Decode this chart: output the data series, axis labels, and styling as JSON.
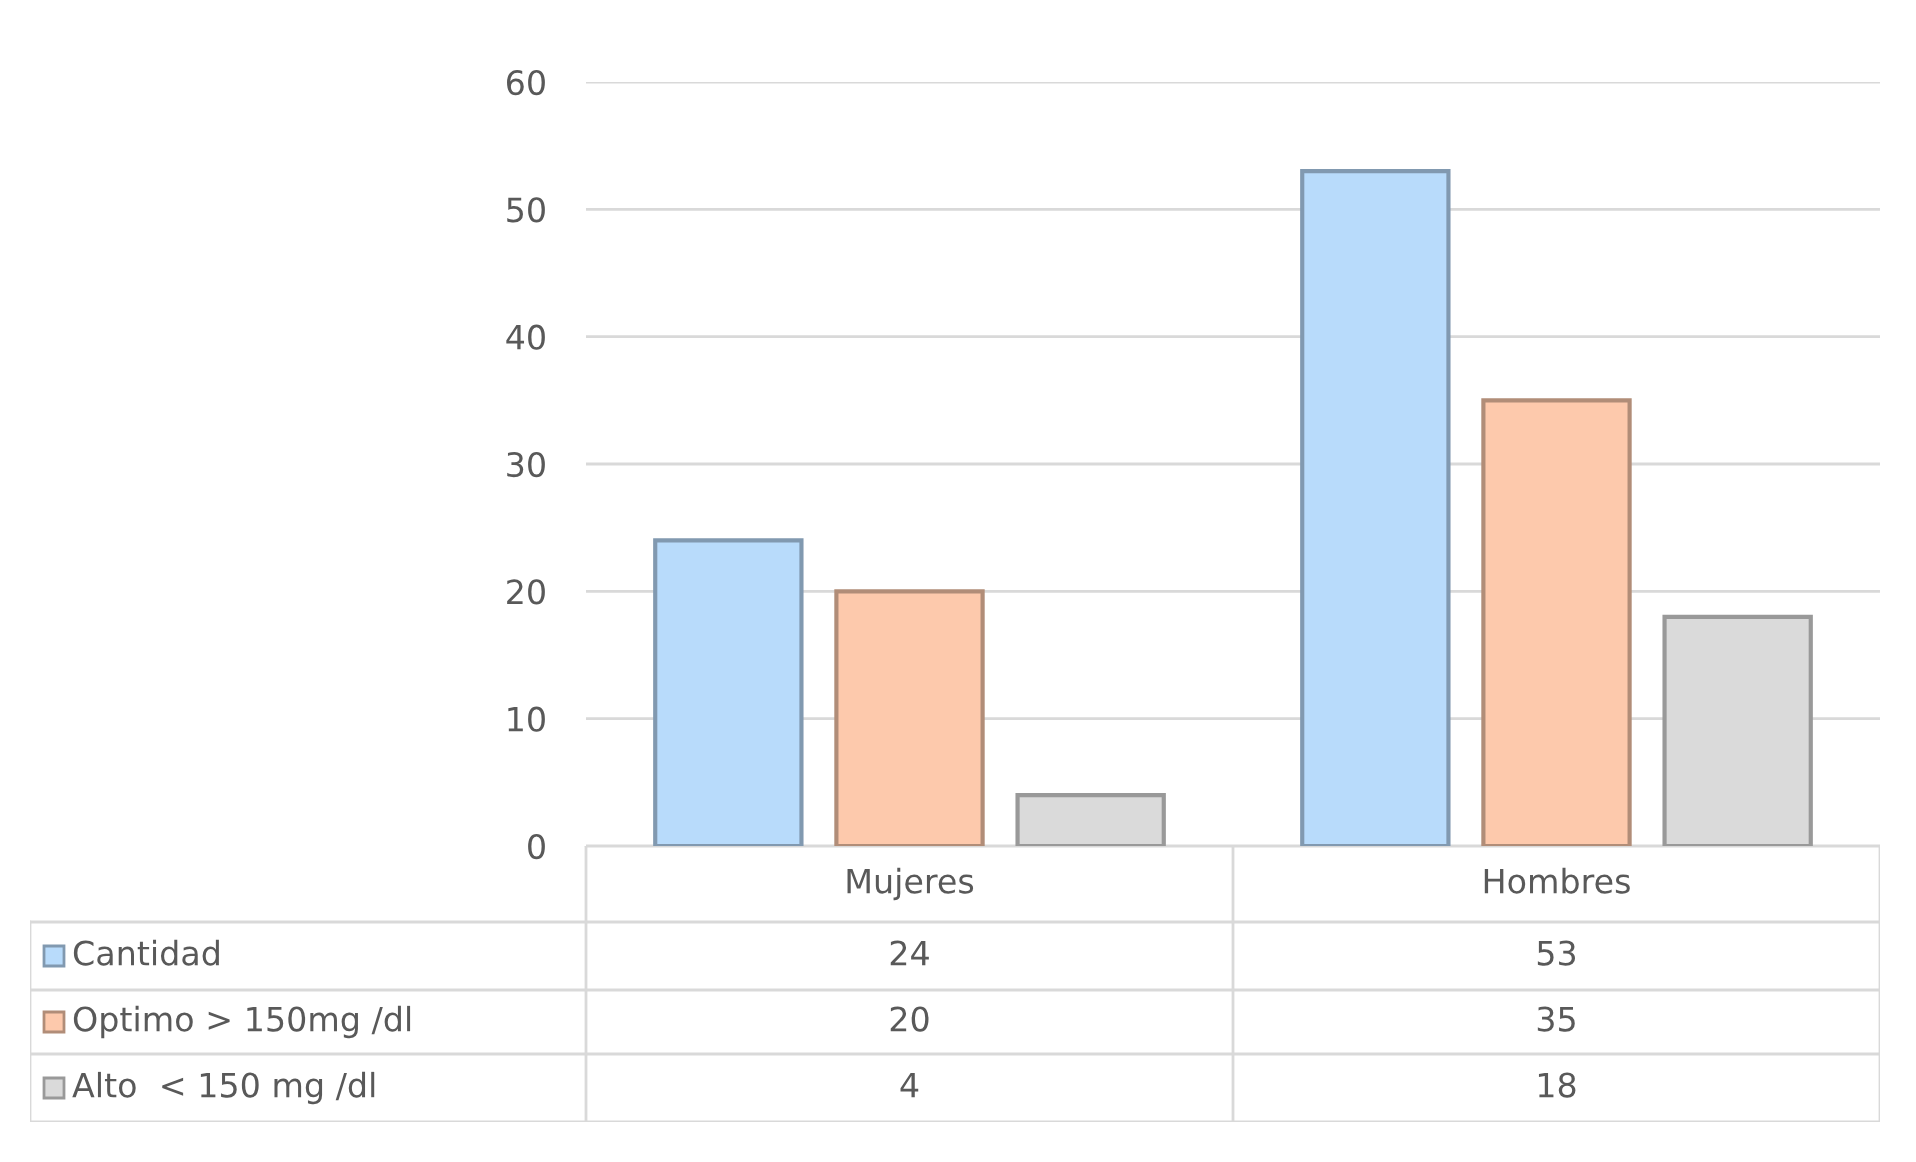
{
  "chart_data": {
    "type": "bar",
    "categories": [
      "Mujeres",
      "Hombres"
    ],
    "series": [
      {
        "name": "Cantidad",
        "color": "#b8dbfb",
        "values": [
          24,
          53
        ]
      },
      {
        "name": "Optimo > 150mg /dl",
        "color": "#fdc9ac",
        "values": [
          20,
          35
        ]
      },
      {
        "name": "Alto  < 150 mg /dl",
        "color": "#dadada",
        "values": [
          4,
          18
        ]
      }
    ],
    "ylim": [
      0,
      60
    ],
    "yticks": [
      0,
      10,
      20,
      30,
      40,
      50,
      60
    ],
    "grid": "y",
    "data_labels": true,
    "legend": "bottom left"
  }
}
